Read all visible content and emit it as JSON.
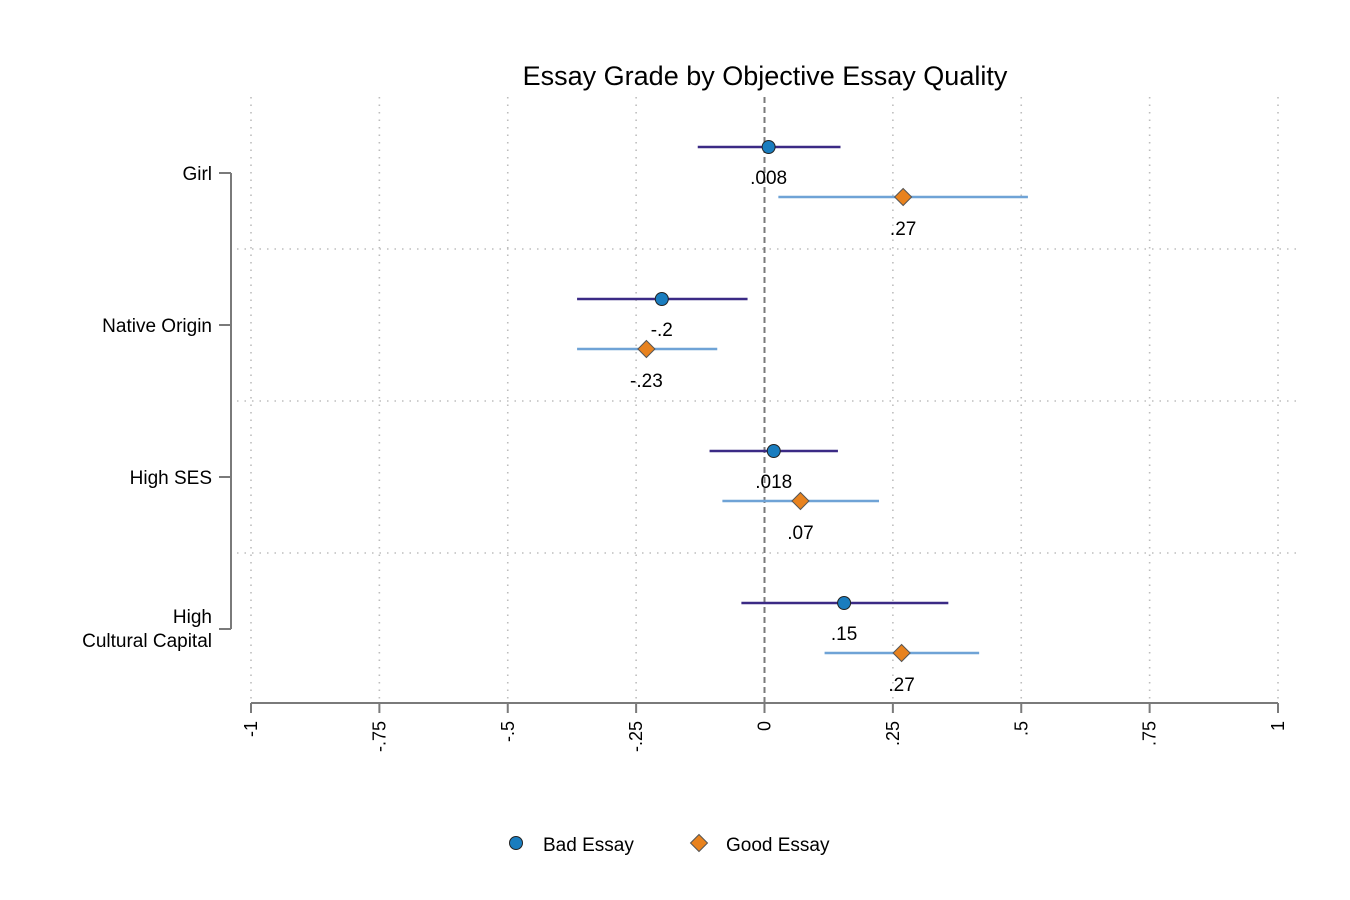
{
  "chart_data": {
    "type": "coefficient-plot",
    "title": "Essay Grade by Objective Essay Quality",
    "categories": [
      {
        "lines": [
          "Girl"
        ]
      },
      {
        "lines": [
          "Native Origin"
        ]
      },
      {
        "lines": [
          "High SES"
        ]
      },
      {
        "lines": [
          "High",
          "Cultural Capital"
        ]
      }
    ],
    "xlim": [
      -1,
      1
    ],
    "xticks": [
      -1,
      -0.75,
      -0.5,
      -0.25,
      0,
      0.25,
      0.5,
      0.75,
      1
    ],
    "xtick_labels": [
      "-1",
      "-.75",
      "-.5",
      "-.25",
      "0",
      ".25",
      ".5",
      ".75",
      "1"
    ],
    "xtick_orientation": "vertical",
    "reference_line": 0,
    "grid": true,
    "legend_position": "bottom",
    "series": [
      {
        "name": "Bad Essay",
        "marker": "circle",
        "marker_color": "#1a7dbf",
        "line_color": "#3b2a85",
        "estimates": [
          0.008,
          -0.2,
          0.018,
          0.155
        ],
        "ci_low": [
          -0.13,
          -0.365,
          -0.107,
          -0.045
        ],
        "ci_high": [
          0.148,
          -0.033,
          0.143,
          0.358
        ],
        "labels": [
          ".008",
          "-.2",
          ".018",
          ".15"
        ]
      },
      {
        "name": "Good Essay",
        "marker": "diamond",
        "marker_color": "#e8821e",
        "line_color": "#6fa3d6",
        "estimates": [
          0.27,
          -0.23,
          0.07,
          0.267
        ],
        "ci_low": [
          0.027,
          -0.365,
          -0.082,
          0.117
        ],
        "ci_high": [
          0.513,
          -0.092,
          0.223,
          0.418
        ],
        "labels": [
          ".27",
          "-.23",
          ".07",
          ".27"
        ]
      }
    ]
  }
}
